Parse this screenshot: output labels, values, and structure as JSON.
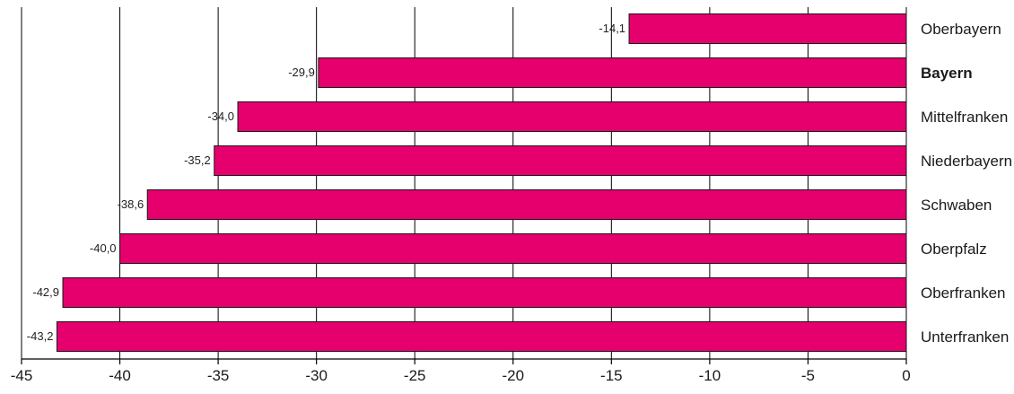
{
  "chart_data": {
    "type": "bar",
    "orientation": "horizontal",
    "categories": [
      "Oberbayern",
      "Bayern",
      "Mittelfranken",
      "Niederbayern",
      "Schwaben",
      "Oberpfalz",
      "Oberfranken",
      "Unterfranken"
    ],
    "values": [
      -14.1,
      -29.9,
      -34.0,
      -35.2,
      -38.6,
      -40.0,
      -42.9,
      -43.2
    ],
    "value_labels": [
      "-14,1",
      "-29,9",
      "-34,0",
      "-35,2",
      "-38,6",
      "-40,0",
      "-42,9",
      "-43,2"
    ],
    "highlighted_category": "Bayern",
    "xlim": [
      -45,
      0
    ],
    "xticks": [
      -45,
      -40,
      -35,
      -30,
      -25,
      -20,
      -15,
      -10,
      -5,
      0
    ],
    "xtick_labels": [
      "-45",
      "-40",
      "-35",
      "-30",
      "-25",
      "-20",
      "-15",
      "-10",
      "-5",
      "0"
    ],
    "grid": "vertical",
    "colors": {
      "bar": "#E5006E",
      "grid": "#000000"
    }
  }
}
